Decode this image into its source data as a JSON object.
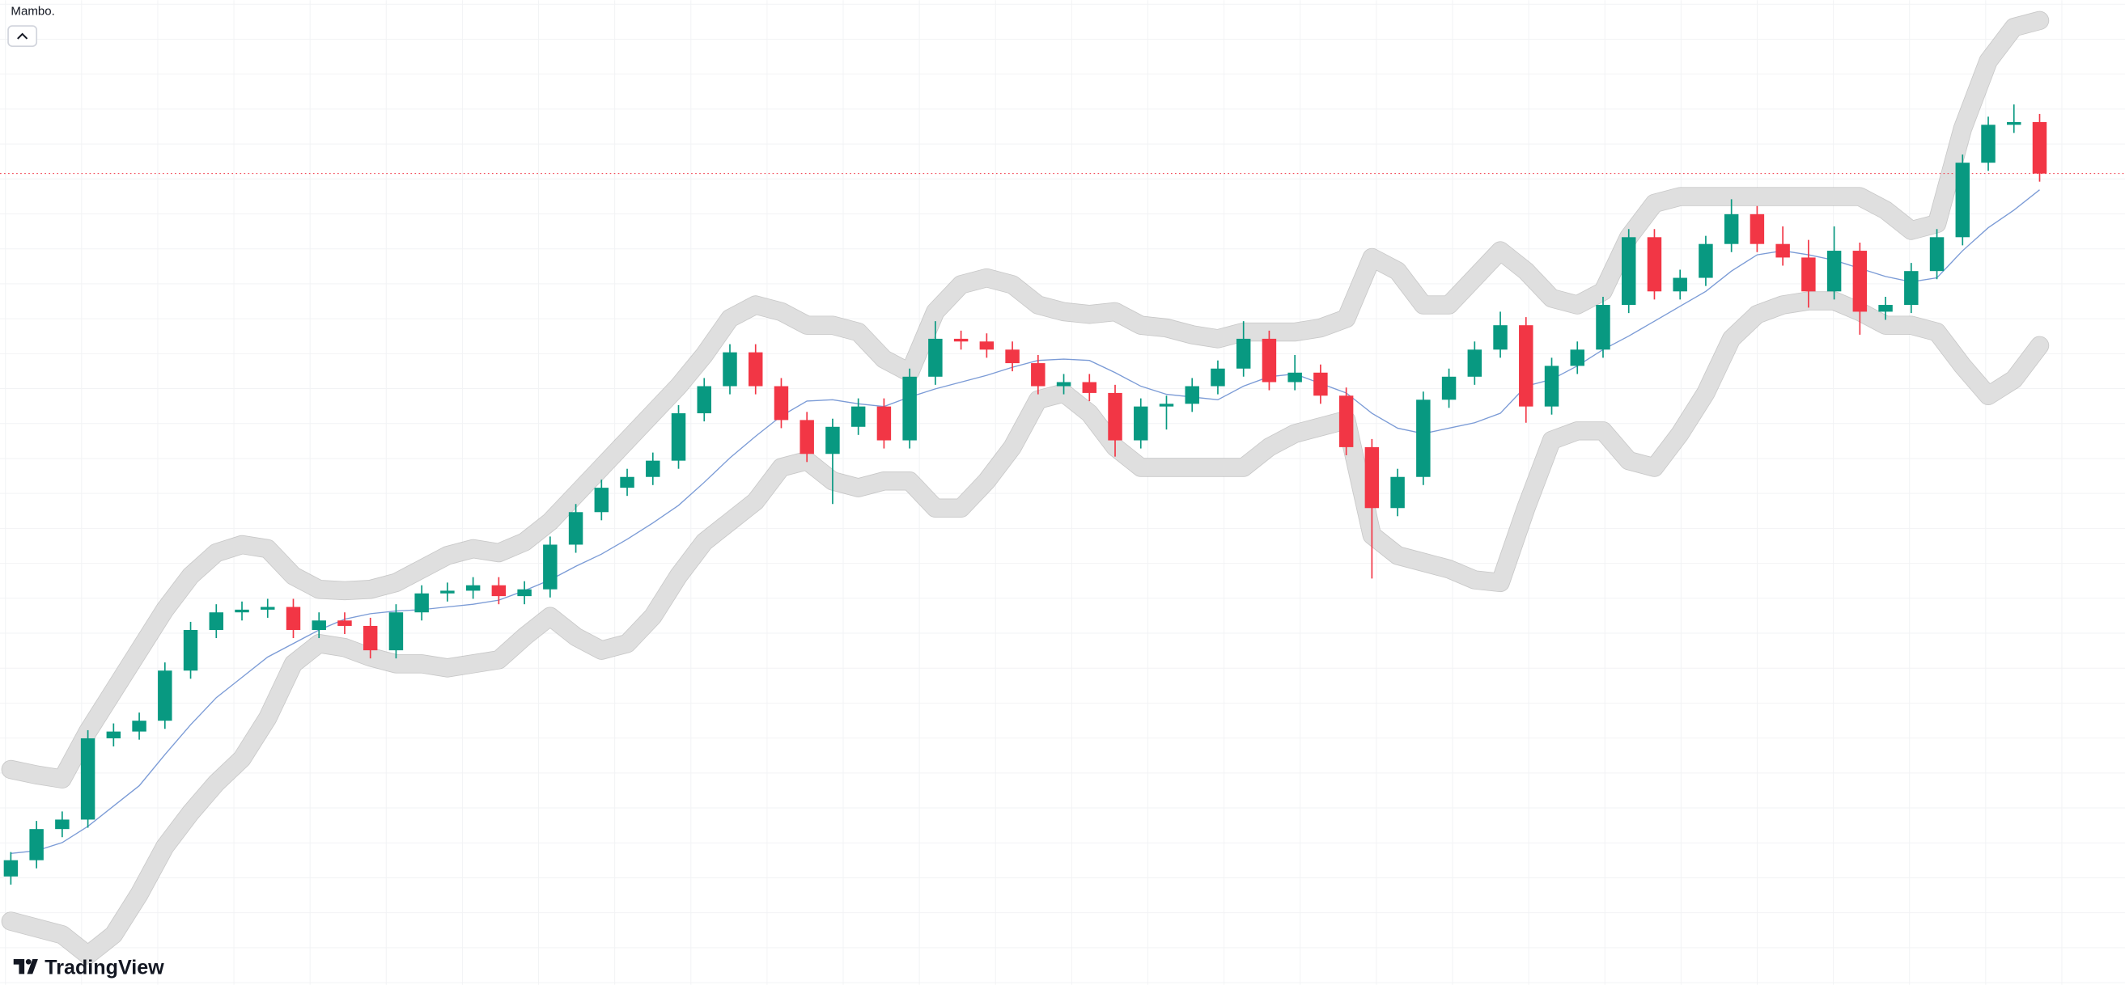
{
  "chart_data": {
    "type": "candlestick",
    "title": "Mambo.",
    "watermark": "TradingView",
    "ylim": [
      0,
      727
    ],
    "up_color": "#089981",
    "down_color": "#f23645",
    "open": [
      80,
      92,
      115,
      122,
      182,
      187,
      195,
      232,
      262,
      275,
      277,
      279,
      262,
      269,
      265,
      247,
      275,
      289,
      291,
      295,
      287,
      292,
      325,
      349,
      367,
      375,
      387,
      422,
      442,
      467,
      442,
      417,
      392,
      412,
      427,
      402,
      449,
      477,
      475,
      469,
      459,
      442,
      445,
      437,
      402,
      427,
      429,
      442,
      455,
      477,
      445,
      452,
      435,
      397,
      352,
      375,
      432,
      449,
      469,
      487,
      427,
      457,
      469,
      502,
      552,
      512,
      522,
      547,
      569,
      547,
      537,
      512,
      542,
      497,
      502,
      527,
      552,
      607,
      635,
      637
    ],
    "high": [
      98,
      121,
      128,
      188,
      193,
      201,
      238,
      268,
      281,
      283,
      285,
      285,
      275,
      275,
      271,
      281,
      295,
      297,
      301,
      301,
      298,
      331,
      355,
      373,
      381,
      393,
      428,
      448,
      473,
      473,
      448,
      423,
      418,
      433,
      433,
      455,
      490,
      483,
      481,
      475,
      465,
      451,
      451,
      443,
      433,
      435,
      448,
      461,
      490,
      483,
      465,
      458,
      441,
      403,
      381,
      438,
      455,
      475,
      497,
      493,
      463,
      475,
      508,
      558,
      558,
      528,
      553,
      580,
      575,
      560,
      550,
      560,
      548,
      508,
      533,
      558,
      613,
      641,
      650,
      643
    ],
    "low": [
      74,
      86,
      109,
      116,
      176,
      181,
      189,
      226,
      256,
      269,
      271,
      256,
      256,
      259,
      241,
      241,
      269,
      283,
      285,
      281,
      281,
      286,
      319,
      343,
      361,
      369,
      381,
      416,
      436,
      436,
      411,
      386,
      355,
      406,
      396,
      396,
      443,
      469,
      463,
      453,
      436,
      436,
      431,
      390,
      396,
      410,
      423,
      436,
      449,
      439,
      439,
      429,
      391,
      300,
      346,
      369,
      426,
      443,
      463,
      415,
      421,
      451,
      463,
      496,
      506,
      506,
      516,
      541,
      541,
      531,
      500,
      506,
      480,
      491,
      496,
      521,
      546,
      601,
      629,
      593
    ],
    "close": [
      92,
      115,
      122,
      182,
      187,
      195,
      232,
      262,
      275,
      277,
      279,
      262,
      269,
      265,
      247,
      275,
      289,
      291,
      295,
      287,
      292,
      325,
      349,
      367,
      375,
      387,
      422,
      442,
      467,
      442,
      417,
      392,
      412,
      427,
      402,
      449,
      477,
      475,
      469,
      459,
      442,
      445,
      437,
      402,
      427,
      429,
      442,
      455,
      477,
      445,
      452,
      435,
      397,
      352,
      375,
      432,
      449,
      469,
      487,
      427,
      457,
      469,
      502,
      552,
      512,
      522,
      547,
      569,
      547,
      537,
      512,
      542,
      497,
      502,
      527,
      552,
      607,
      635,
      637,
      599
    ],
    "upper": [
      159,
      155,
      152,
      187,
      217,
      247,
      277,
      302,
      319,
      325,
      322,
      302,
      292,
      291,
      292,
      297,
      307,
      317,
      322,
      319,
      327,
      342,
      362,
      382,
      402,
      422,
      442,
      465,
      492,
      502,
      497,
      487,
      487,
      482,
      462,
      452,
      497,
      517,
      522,
      517,
      502,
      497,
      495,
      497,
      487,
      485,
      480,
      477,
      482,
      482,
      482,
      485,
      492,
      537,
      527,
      502,
      502,
      522,
      542,
      527,
      507,
      502,
      512,
      552,
      577,
      582,
      582,
      582,
      582,
      582,
      582,
      582,
      582,
      572,
      557,
      562,
      632,
      682,
      707,
      712
    ],
    "lower": [
      47,
      42,
      37,
      22,
      37,
      67,
      102,
      127,
      149,
      167,
      197,
      237,
      252,
      249,
      242,
      237,
      237,
      234,
      237,
      240,
      257,
      272,
      257,
      247,
      252,
      272,
      302,
      327,
      342,
      357,
      382,
      387,
      372,
      367,
      372,
      372,
      352,
      352,
      372,
      397,
      432,
      437,
      422,
      397,
      382,
      382,
      382,
      382,
      382,
      397,
      407,
      412,
      417,
      332,
      317,
      312,
      307,
      299,
      297,
      352,
      402,
      409,
      409,
      387,
      382,
      407,
      437,
      477,
      495,
      502,
      505,
      505,
      497,
      487,
      487,
      482,
      457,
      435,
      447,
      472
    ],
    "basis": [
      97,
      99,
      105,
      117,
      132,
      147,
      170,
      192,
      212,
      227,
      242,
      252,
      262,
      270,
      274,
      276,
      277,
      279,
      281,
      284,
      291,
      299,
      309,
      318,
      329,
      341,
      354,
      371,
      389,
      405,
      420,
      431,
      432,
      429,
      427,
      434,
      440,
      445,
      450,
      456,
      461,
      462,
      461,
      452,
      442,
      436,
      434,
      432,
      442,
      449,
      451,
      444,
      437,
      422,
      411,
      407,
      411,
      415,
      422,
      442,
      447,
      457,
      469,
      479,
      490,
      501,
      512,
      527,
      539,
      542,
      539,
      535,
      529,
      523,
      519,
      522,
      542,
      559,
      572,
      587
    ],
    "band_color": "#e0e0e0",
    "basis_color": "#7b9bd6"
  }
}
